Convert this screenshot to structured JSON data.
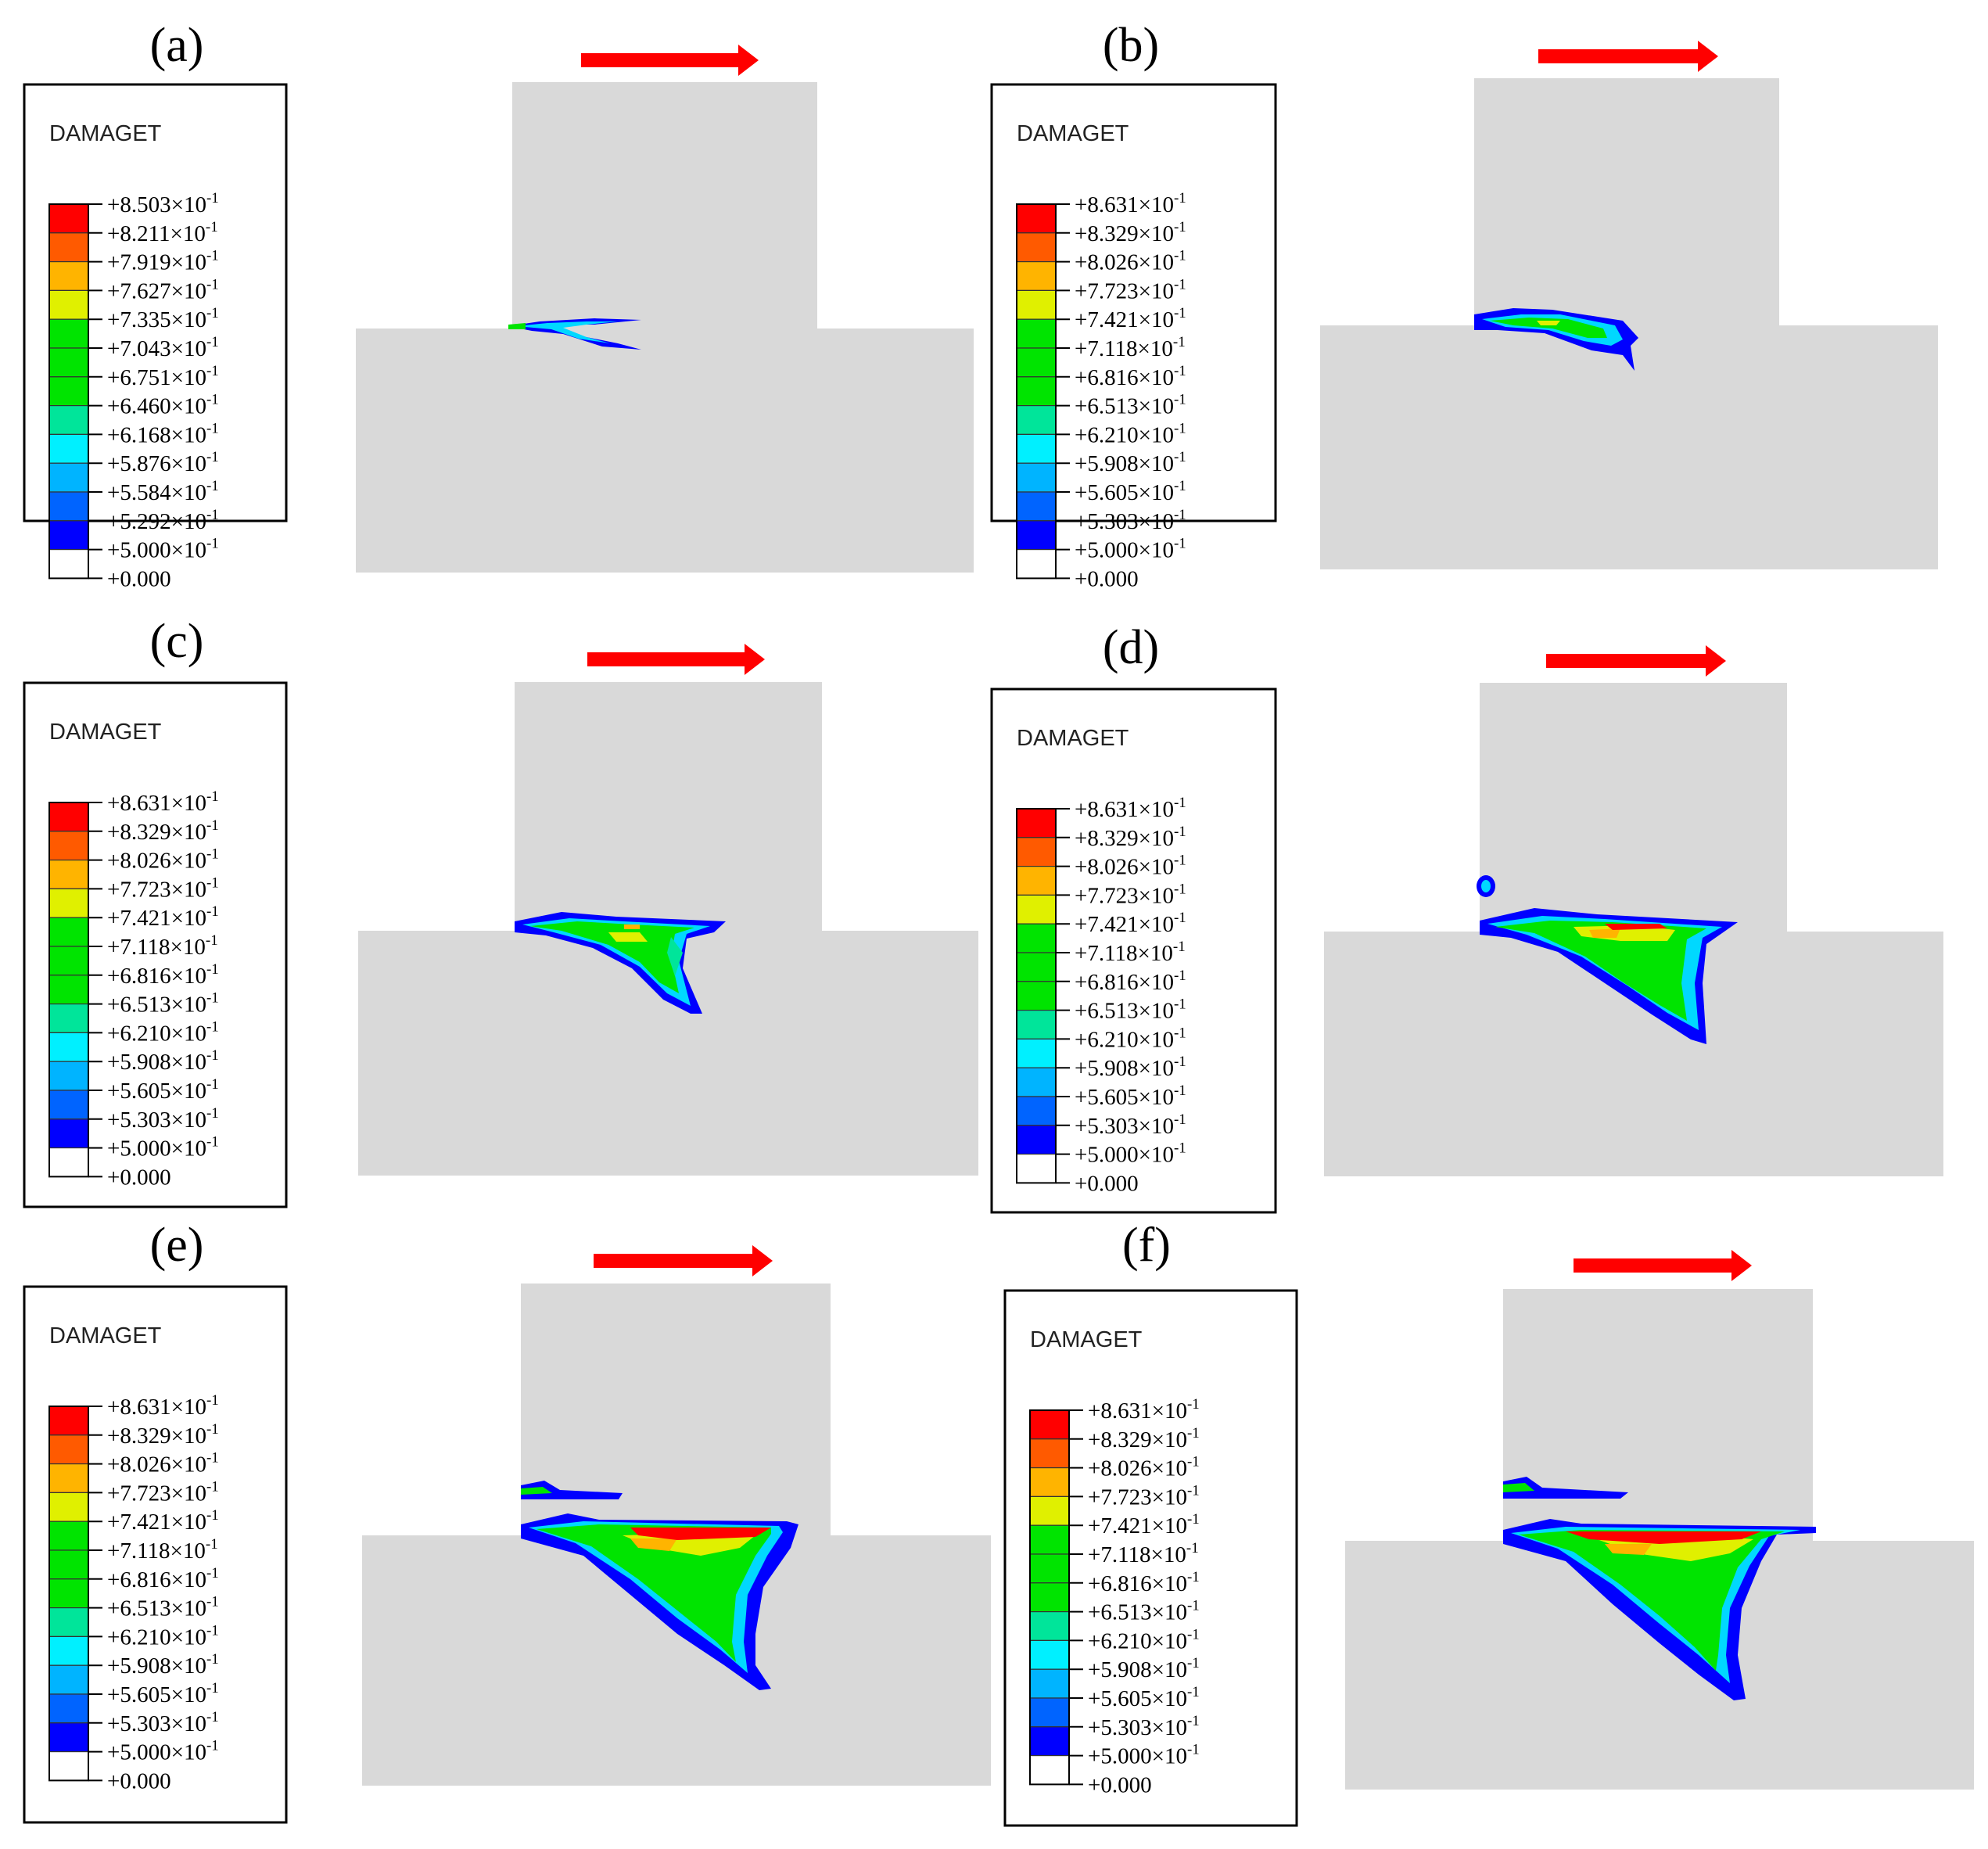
{
  "legend_title": "DAMAGET",
  "zero_label": "+0.000",
  "exp_suffix": "×10",
  "exp_power": "-1",
  "band_colors": [
    "#ff0000",
    "#ff5a00",
    "#ffb400",
    "#e0f000",
    "#00e400",
    "#00e400",
    "#00e400",
    "#00e59a",
    "#00f0ff",
    "#00b4ff",
    "#0064ff",
    "#0000ff",
    "#ffffff"
  ],
  "damage_colors": {
    "blue": "#0000ff",
    "light_blue": "#1e90ff",
    "cyan": "#00d8ff",
    "teal": "#00e59a",
    "green": "#00e400",
    "yellow": "#e0f000",
    "orange": "#ffb400",
    "red": "#ff0000"
  },
  "body_color": "#d9d9d9",
  "arrow_color": "#ff0000",
  "panels": [
    {
      "label": "(a)",
      "values": [
        "+8.503",
        "+8.211",
        "+7.919",
        "+7.627",
        "+7.335",
        "+7.043",
        "+6.751",
        "+6.460",
        "+6.168",
        "+5.876",
        "+5.584",
        "+5.292",
        "+5.000"
      ]
    },
    {
      "label": "(b)",
      "values": [
        "+8.631",
        "+8.329",
        "+8.026",
        "+7.723",
        "+7.421",
        "+7.118",
        "+6.816",
        "+6.513",
        "+6.210",
        "+5.908",
        "+5.605",
        "+5.303",
        "+5.000"
      ]
    },
    {
      "label": "(c)",
      "values": [
        "+8.631",
        "+8.329",
        "+8.026",
        "+7.723",
        "+7.421",
        "+7.118",
        "+6.816",
        "+6.513",
        "+6.210",
        "+5.908",
        "+5.605",
        "+5.303",
        "+5.000"
      ]
    },
    {
      "label": "(d)",
      "values": [
        "+8.631",
        "+8.329",
        "+8.026",
        "+7.723",
        "+7.421",
        "+7.118",
        "+6.816",
        "+6.513",
        "+6.210",
        "+5.908",
        "+5.605",
        "+5.303",
        "+5.000"
      ]
    },
    {
      "label": "(e)",
      "values": [
        "+8.631",
        "+8.329",
        "+8.026",
        "+7.723",
        "+7.421",
        "+7.118",
        "+6.816",
        "+6.513",
        "+6.210",
        "+5.908",
        "+5.605",
        "+5.303",
        "+5.000"
      ]
    },
    {
      "label": "(f)",
      "values": [
        "+8.631",
        "+8.329",
        "+8.026",
        "+7.723",
        "+7.421",
        "+7.118",
        "+6.816",
        "+6.513",
        "+6.210",
        "+5.908",
        "+5.605",
        "+5.303",
        "+5.000"
      ]
    }
  ]
}
